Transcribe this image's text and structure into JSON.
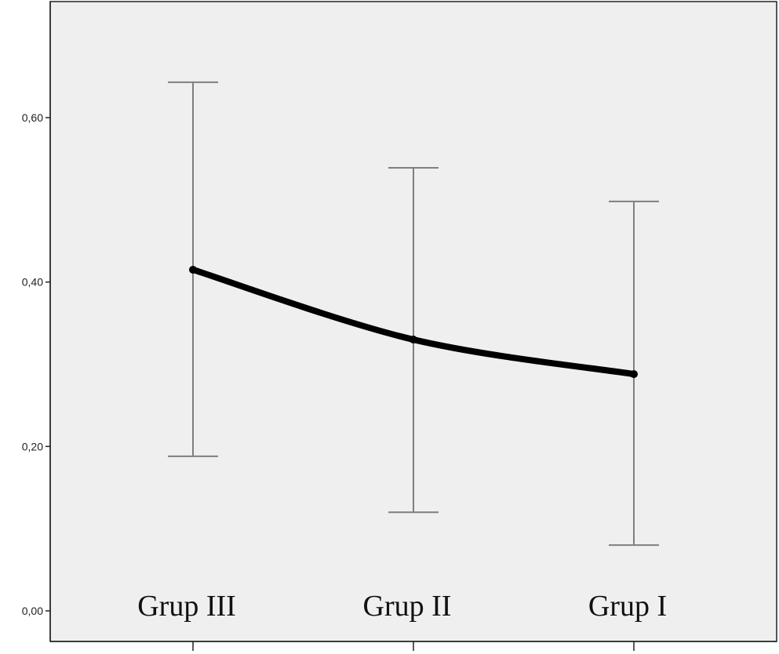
{
  "chart_data": {
    "type": "line",
    "title": "",
    "xlabel": "",
    "ylabel": "",
    "categories": [
      "Grup III",
      "Grup II",
      "Grup I"
    ],
    "series": [
      {
        "values": [
          0.415,
          0.33,
          0.288
        ],
        "error_low": [
          0.188,
          0.12,
          0.08
        ],
        "error_high": [
          0.643,
          0.539,
          0.498
        ]
      }
    ],
    "ylim": [
      0,
      0.72
    ],
    "yticks": [
      0,
      0.2,
      0.4,
      0.6
    ],
    "ytick_labels": [
      "0,00",
      "0,20",
      "0,40",
      "0,60"
    ],
    "grid": false,
    "colors": {
      "plot_background": "#efefef",
      "line": "#000000",
      "error_bar": "#7f7f7f",
      "axis": "#222222"
    }
  }
}
